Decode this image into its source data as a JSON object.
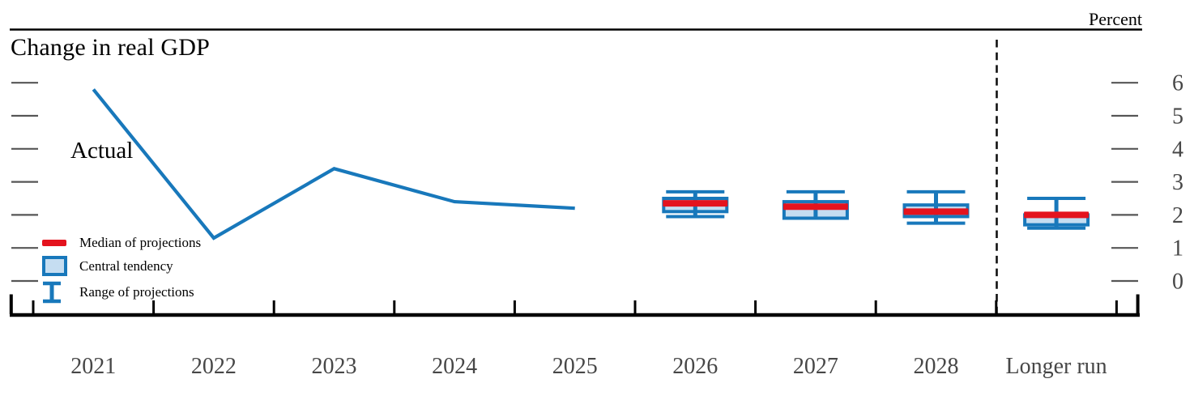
{
  "chart": {
    "title": "Change in real GDP",
    "unit_label": "Percent",
    "actual_label": "Actual",
    "legend": {
      "median": "Median of projections",
      "central_tendency": "Central tendency",
      "range": "Range of projections"
    }
  },
  "chart_data": {
    "type": "line",
    "title": "Change in real GDP",
    "ylabel": "Percent",
    "ylim": [
      0,
      6
    ],
    "yticks": [
      0,
      1,
      2,
      3,
      4,
      5,
      6
    ],
    "grid": false,
    "legend_position": "lower-left",
    "legend_entries": [
      "Median of projections",
      "Central tendency",
      "Range of projections"
    ],
    "categories": [
      "2021",
      "2022",
      "2023",
      "2024",
      "2025",
      "2026",
      "2027",
      "2028",
      "Longer run"
    ],
    "series": [
      {
        "name": "Actual",
        "kind": "line",
        "x": [
          "2021",
          "2022",
          "2023",
          "2024",
          "2025"
        ],
        "values": [
          5.8,
          1.3,
          3.4,
          2.4,
          2.2
        ]
      }
    ],
    "box_whisker_projections": [
      {
        "category": "2026",
        "median": 2.35,
        "central_tendency": [
          2.1,
          2.5
        ],
        "range": [
          1.95,
          2.7
        ]
      },
      {
        "category": "2027",
        "median": 2.25,
        "central_tendency": [
          1.9,
          2.4
        ],
        "range": [
          1.9,
          2.7
        ]
      },
      {
        "category": "2028",
        "median": 2.1,
        "central_tendency": [
          1.95,
          2.3
        ],
        "range": [
          1.75,
          2.7
        ]
      },
      {
        "category": "Longer run",
        "median": 2.0,
        "central_tendency": [
          1.7,
          2.0
        ],
        "range": [
          1.6,
          2.5
        ]
      }
    ],
    "separator_before_category": "Longer run",
    "colors": {
      "line_blue": "#1878bb",
      "box_fill": "#c5ddf1",
      "median_red": "#e4131e",
      "axis_black": "#000000",
      "tick_gray": "#565656",
      "label_gray": "#474747"
    }
  }
}
